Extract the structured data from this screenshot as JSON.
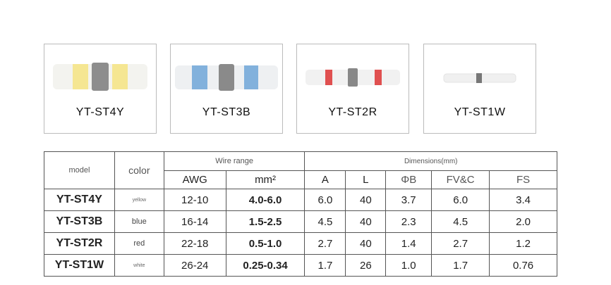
{
  "products": [
    {
      "label": "YT-ST4Y"
    },
    {
      "label": "YT-ST3B"
    },
    {
      "label": "YT-ST2R"
    },
    {
      "label": "YT-ST1W"
    }
  ],
  "table": {
    "header": {
      "model": "model",
      "color": "color",
      "wire_range": "Wire range",
      "dimensions": "Dimensions(mm)",
      "sub": [
        "AWG",
        "mm²",
        "A",
        "L",
        "ΦB",
        "FV&C",
        "FS"
      ]
    },
    "rows": [
      [
        "YT-ST4Y",
        "yellow",
        "12-10",
        "4.0-6.0",
        "6.0",
        "40",
        "3.7",
        "6.0",
        "3.4"
      ],
      [
        "YT-ST3B",
        "blue",
        "16-14",
        "1.5-2.5",
        "4.5",
        "40",
        "2.3",
        "4.5",
        "2.0"
      ],
      [
        "YT-ST2R",
        "red",
        "22-18",
        "0.5-1.0",
        "2.7",
        "40",
        "1.4",
        "2.7",
        "1.2"
      ],
      [
        "YT-ST1W",
        "white",
        "26-24",
        "0.25-0.34",
        "1.7",
        "26",
        "1.0",
        "1.7",
        "0.76"
      ]
    ]
  }
}
